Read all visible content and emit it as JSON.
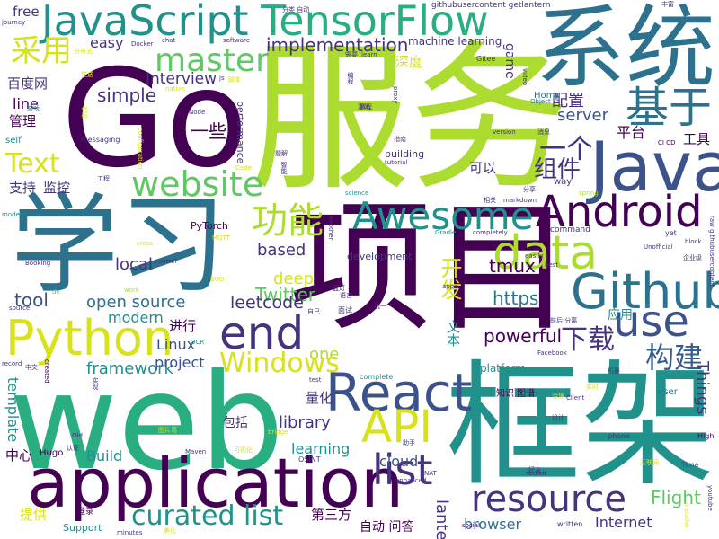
{
  "colors": {
    "background": "#ffffff",
    "purple": "#440154",
    "deep_violet": "#46327e",
    "indigo": "#3b528b",
    "blue": "#365c8d",
    "teal_blue": "#2c728e",
    "teal": "#21918c",
    "green_teal": "#28ae80",
    "green": "#5ec962",
    "lime": "#addc30",
    "yellow": "#d8e219"
  },
  "words": [
    {
      "text": "Go",
      "color": "#440154"
    },
    {
      "text": "服务",
      "color": "#addc30"
    },
    {
      "text": "系统",
      "color": "#2c728e"
    },
    {
      "text": "web",
      "color": "#28ae80"
    },
    {
      "text": "框架",
      "color": "#21918c"
    },
    {
      "text": "项目",
      "color": "#440154"
    },
    {
      "text": "学习",
      "color": "#2c728e"
    },
    {
      "text": "application",
      "color": "#440154"
    },
    {
      "text": "JavaScript",
      "color": "#21918c"
    },
    {
      "text": "TensorFlow",
      "color": "#28ae80"
    },
    {
      "text": "Java",
      "color": "#3b528b"
    },
    {
      "text": "Python",
      "color": "#d8e219"
    },
    {
      "text": "React",
      "color": "#3b528b"
    },
    {
      "text": "Github",
      "color": "#2c728e"
    },
    {
      "text": "Android",
      "color": "#440154"
    },
    {
      "text": "Awesome",
      "color": "#21918c"
    },
    {
      "text": "master",
      "color": "#5ec962"
    },
    {
      "text": "website",
      "color": "#5ec962"
    },
    {
      "text": "API",
      "color": "#d8e219"
    },
    {
      "text": "data",
      "color": "#addc30"
    },
    {
      "text": "use",
      "color": "#3b528b"
    },
    {
      "text": "end",
      "color": "#46327e"
    },
    {
      "text": "list",
      "color": "#46327e"
    },
    {
      "text": "resource",
      "color": "#46327e"
    },
    {
      "text": "curated list",
      "color": "#21918c"
    },
    {
      "text": "Windows",
      "color": "#d8e219"
    },
    {
      "text": "功能",
      "color": "#addc30"
    },
    {
      "text": "基于",
      "color": "#2c728e"
    },
    {
      "text": "一个",
      "color": "#46327e"
    },
    {
      "text": "采用",
      "color": "#d8e219"
    },
    {
      "text": "Text",
      "color": "#d8e219"
    },
    {
      "text": "下载",
      "color": "#46327e"
    },
    {
      "text": "构建",
      "color": "#365c8d"
    },
    {
      "text": "组件",
      "color": "#46327e"
    },
    {
      "text": "开发",
      "color": "#d8e219"
    },
    {
      "text": "implementation",
      "color": "#46327e"
    },
    {
      "text": "Interview",
      "color": "#46327e"
    },
    {
      "text": "simple",
      "color": "#46327e"
    },
    {
      "text": "easy",
      "color": "#46327e"
    },
    {
      "text": "server",
      "color": "#3b528b"
    },
    {
      "text": "powerful",
      "color": "#440154"
    },
    {
      "text": "https",
      "color": "#2c728e"
    },
    {
      "text": "tmux",
      "color": "#440154"
    },
    {
      "text": "Twitter",
      "color": "#5ec962"
    },
    {
      "text": "leetcode",
      "color": "#46327e"
    },
    {
      "text": "open source",
      "color": "#2c728e"
    },
    {
      "text": "modern",
      "color": "#21918c"
    },
    {
      "text": "tool",
      "color": "#3b528b"
    },
    {
      "text": "local",
      "color": "#46327e"
    },
    {
      "text": "based",
      "color": "#46327e"
    },
    {
      "text": "deep",
      "color": "#d8e219"
    },
    {
      "text": "framework",
      "color": "#21918c"
    },
    {
      "text": "project",
      "color": "#3b528b"
    },
    {
      "text": "Linux",
      "color": "#3b528b"
    },
    {
      "text": "library",
      "color": "#46327e"
    },
    {
      "text": "one",
      "color": "#addc30"
    },
    {
      "text": "learning",
      "color": "#21918c"
    },
    {
      "text": "cloud",
      "color": "#3b528b"
    },
    {
      "text": "Build",
      "color": "#21918c"
    },
    {
      "text": "browser",
      "color": "#2c728e"
    },
    {
      "text": "Internet",
      "color": "#46327e"
    },
    {
      "text": "Flight",
      "color": "#5ec962"
    },
    {
      "text": "lantern",
      "color": "#46327e"
    },
    {
      "text": "Things",
      "color": "#46327e"
    },
    {
      "text": "template",
      "color": "#21918c"
    },
    {
      "text": "line",
      "color": "#440154"
    },
    {
      "text": "free",
      "color": "#46327e"
    },
    {
      "text": "game",
      "color": "#46327e"
    },
    {
      "text": "百度网",
      "color": "#46327e"
    },
    {
      "text": "管理",
      "color": "#440154"
    },
    {
      "text": "支持",
      "color": "#46327e"
    },
    {
      "text": "监控",
      "color": "#46327e"
    },
    {
      "text": "一些",
      "color": "#440154"
    },
    {
      "text": "配置",
      "color": "#46327e"
    },
    {
      "text": "深度",
      "color": "#d8e219"
    },
    {
      "text": "可以",
      "color": "#46327e"
    },
    {
      "text": "平台",
      "color": "#440154"
    },
    {
      "text": "工具",
      "color": "#440154"
    },
    {
      "text": "进行",
      "color": "#440154"
    },
    {
      "text": "量化",
      "color": "#46327e"
    },
    {
      "text": "应用",
      "color": "#21918c"
    },
    {
      "text": "文本",
      "color": "#21918c"
    },
    {
      "text": "中心",
      "color": "#440154"
    },
    {
      "text": "提供",
      "color": "#d8e219"
    },
    {
      "text": "第三方",
      "color": "#440154"
    },
    {
      "text": "自动 问答",
      "color": "#440154"
    },
    {
      "text": "包括",
      "color": "#46327e"
    },
    {
      "text": "machine learning",
      "color": "#46327e"
    },
    {
      "text": "githubusercontent getlantern",
      "color": "#46327e"
    },
    {
      "text": "development",
      "color": "#46327e"
    },
    {
      "text": "platform",
      "color": "#21918c"
    },
    {
      "text": "PyTorch",
      "color": "#440154"
    },
    {
      "text": "performance",
      "color": "#46327e"
    },
    {
      "text": "building",
      "color": "#46327e"
    },
    {
      "text": "Hugo",
      "color": "#440154"
    },
    {
      "text": "Support",
      "color": "#21918c"
    },
    {
      "text": "software",
      "color": "#46327e"
    },
    {
      "text": "messaging",
      "color": "#46327e"
    },
    {
      "text": "command",
      "color": "#46327e"
    },
    {
      "text": "Docker",
      "color": "#46327e"
    },
    {
      "text": "chat",
      "color": "#46327e"
    },
    {
      "text": "Gitee",
      "color": "#46327e"
    },
    {
      "text": "tutorial",
      "color": "#46327e"
    },
    {
      "text": "science",
      "color": "#21918c"
    },
    {
      "text": "CI CD",
      "color": "#440154"
    },
    {
      "text": "Home",
      "color": "#2c728e"
    },
    {
      "text": "Object",
      "color": "#2c728e"
    },
    {
      "text": "learn",
      "color": "#46327e"
    },
    {
      "text": "version",
      "color": "#46327e"
    },
    {
      "text": "way",
      "color": "#46327e"
    },
    {
      "text": "self",
      "color": "#21918c"
    },
    {
      "text": "models",
      "color": "#21918c"
    },
    {
      "text": "Booking",
      "color": "#46327e"
    },
    {
      "text": "control",
      "color": "#46327e"
    },
    {
      "text": "work",
      "color": "#addc30"
    },
    {
      "text": "source",
      "color": "#46327e"
    },
    {
      "text": "record",
      "color": "#46327e"
    },
    {
      "text": "created",
      "color": "#440154"
    },
    {
      "text": "complete",
      "color": "#21918c"
    },
    {
      "text": "test",
      "color": "#46327e"
    },
    {
      "text": "Client",
      "color": "#46327e"
    },
    {
      "text": "user",
      "color": "#2c728e"
    },
    {
      "text": "phone",
      "color": "#46327e"
    },
    {
      "text": "High",
      "color": "#440154"
    },
    {
      "text": "Time",
      "color": "#3b528b"
    },
    {
      "text": "toolkit",
      "color": "#46327e"
    },
    {
      "text": "social",
      "color": "#440154"
    },
    {
      "text": "written",
      "color": "#46327e"
    },
    {
      "text": "minutes",
      "color": "#46327e"
    },
    {
      "text": "installer",
      "color": "#d8e219"
    },
    {
      "text": "youtube",
      "color": "#46327e"
    },
    {
      "text": "Maven",
      "color": "#46327e"
    },
    {
      "text": "bridge",
      "color": "#d8e219"
    },
    {
      "text": "OSINT",
      "color": "#46327e"
    },
    {
      "text": "NAT",
      "color": "#46327e"
    },
    {
      "text": "Old",
      "color": "#46327e"
    },
    {
      "text": "enhanced",
      "color": "#46327e"
    },
    {
      "text": "journey",
      "color": "#46327e"
    },
    {
      "text": "Node",
      "color": "#46327e"
    },
    {
      "text": "proxy",
      "color": "#46327e"
    },
    {
      "text": "Facebook",
      "color": "#46327e"
    },
    {
      "text": "Unofficial",
      "color": "#46327e"
    },
    {
      "text": "raw githubusercontent",
      "color": "#46327e"
    },
    {
      "text": "block",
      "color": "#46327e"
    },
    {
      "text": "best",
      "color": "#46327e"
    },
    {
      "text": "yet",
      "color": "#46327e"
    },
    {
      "text": "apps",
      "color": "#46327e"
    },
    {
      "text": "easily",
      "color": "#46327e"
    },
    {
      "text": "completely",
      "color": "#46327e"
    },
    {
      "text": "Gradle",
      "color": "#21918c"
    },
    {
      "text": "spring",
      "color": "#addc30"
    },
    {
      "text": "markdown",
      "color": "#46327e"
    },
    {
      "text": "MQTT",
      "color": "#d8e219"
    },
    {
      "text": "another",
      "color": "#46327e"
    },
    {
      "text": "cross",
      "color": "#d8e219"
    },
    {
      "text": "video",
      "color": "#46327e"
    },
    {
      "text": "native",
      "color": "#d8e219"
    },
    {
      "text": "Code",
      "color": "#d8e219"
    },
    {
      "text": "configuration",
      "color": "#d8e219"
    },
    {
      "text": "OCR",
      "color": "#21918c"
    },
    {
      "text": "BUG",
      "color": "#d8e219"
    },
    {
      "text": "de",
      "color": "#5ec962"
    },
    {
      "text": "中文",
      "color": "#46327e"
    },
    {
      "text": "分享",
      "color": "#46327e"
    },
    {
      "text": "相关",
      "color": "#46327e"
    },
    {
      "text": "消息",
      "color": "#46327e"
    },
    {
      "text": "教程",
      "color": "#46327e"
    },
    {
      "text": "知识 图谱",
      "color": "#440154"
    },
    {
      "text": "语言",
      "color": "#46327e"
    },
    {
      "text": "面试",
      "color": "#46327e"
    },
    {
      "text": "统一",
      "color": "#46327e"
    },
    {
      "text": "好友",
      "color": "#46327e"
    },
    {
      "text": "机器",
      "color": "#46327e"
    },
    {
      "text": "前后 分离",
      "color": "#46327e"
    },
    {
      "text": "工程",
      "color": "#46327e"
    },
    {
      "text": "题解",
      "color": "#46327e"
    },
    {
      "text": "指南",
      "color": "#46327e"
    },
    {
      "text": "需要",
      "color": "#46327e"
    },
    {
      "text": "分类 自动",
      "color": "#46327e"
    },
    {
      "text": "丰富",
      "color": "#46327e"
    },
    {
      "text": "企业级",
      "color": "#46327e"
    },
    {
      "text": "设计",
      "color": "#46327e"
    },
    {
      "text": "助手",
      "color": "#46327e"
    },
    {
      "text": "认证",
      "color": "#46327e"
    },
    {
      "text": "登录",
      "color": "#440154"
    },
    {
      "text": "自己",
      "color": "#46327e"
    },
    {
      "text": "代码",
      "color": "#d8e219"
    },
    {
      "text": "脚本",
      "color": "#d8e219"
    },
    {
      "text": "分布式",
      "color": "#d8e219"
    },
    {
      "text": "蓝灯",
      "color": "#46327e"
    },
    {
      "text": "源码",
      "color": "#46327e"
    },
    {
      "text": "实现",
      "color": "#46327e"
    },
    {
      "text": "图片墙",
      "color": "#d8e219"
    },
    {
      "text": "游戏",
      "color": "#21918c"
    },
    {
      "text": "美化",
      "color": "#d8e219"
    },
    {
      "text": "js",
      "color": "#46327e"
    },
    {
      "text": "智能",
      "color": "#46327e"
    },
    {
      "text": "推送",
      "color": "#d8e219"
    },
    {
      "text": "治理",
      "color": "#d8e219"
    },
    {
      "text": "编程",
      "color": "#46327e"
    },
    {
      "text": "实时",
      "color": "#d8e219"
    },
    {
      "text": "互联网",
      "color": "#d8e219"
    },
    {
      "text": "可视化",
      "color": "#d8e219"
    }
  ]
}
